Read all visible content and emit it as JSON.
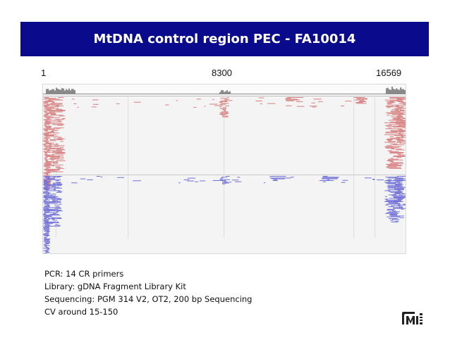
{
  "slide": {
    "title": "MtDNA control region PEC - FA10014"
  },
  "genome_axis": {
    "start_label": "1",
    "mid_label": "8300",
    "end_label": "16569"
  },
  "viewer": {
    "forward_color": "#d88080",
    "reverse_color": "#7070d8",
    "coverage_color": "#8a8a8a"
  },
  "info": {
    "lines": [
      "PCR: 14 CR primers",
      "Library: gDNA Fragment Library Kit",
      "Sequencing:  PGM 314 V2, OT2, 200 bp Sequencing",
      "CV around 15-150"
    ]
  },
  "logo": {
    "icon": "company-logo-icon"
  }
}
